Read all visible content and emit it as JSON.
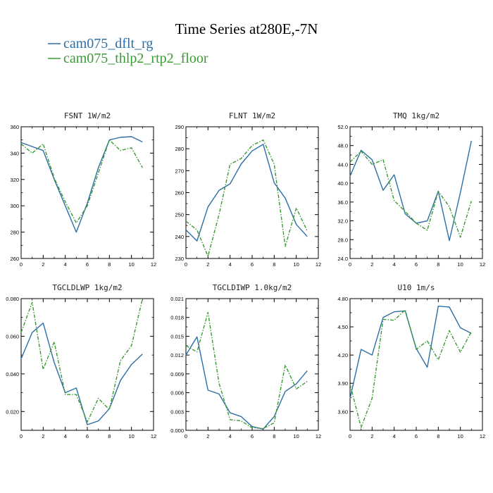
{
  "title": "Time Series at280E,-7N",
  "colors": {
    "dflt": "#2c6fa6",
    "floor": "#3a9a32"
  },
  "legend": [
    {
      "label": "cam075_dflt_rg",
      "color": "#2c6fa6",
      "dash": "solid"
    },
    {
      "label": "cam075_thlp2_rtp2_floor",
      "color": "#3a9a32",
      "dash": "dashdot"
    }
  ],
  "chart_data": [
    {
      "type": "line",
      "title": "FSNT   1W/m2",
      "x": [
        0,
        1,
        2,
        3,
        4,
        5,
        6,
        7,
        8,
        9,
        10,
        11
      ],
      "xlim": [
        0,
        12
      ],
      "xticks": [
        "0",
        "2",
        "4",
        "6",
        "8",
        "10",
        "12"
      ],
      "ylim": [
        260,
        360
      ],
      "yticks": [
        "260",
        "280",
        "300",
        "320",
        "340",
        "360"
      ],
      "series": [
        {
          "name": "cam075_dflt_rg",
          "values": [
            348,
            345,
            342,
            320,
            300,
            280,
            302,
            329,
            350,
            352,
            352.5,
            348.5
          ]
        },
        {
          "name": "cam075_thlp2_rtp2_floor",
          "values": [
            347,
            340,
            347,
            321,
            303,
            287,
            300,
            325,
            350,
            342,
            344,
            329
          ]
        }
      ]
    },
    {
      "type": "line",
      "title": "FLNT   1W/m2",
      "x": [
        0,
        1,
        2,
        3,
        4,
        5,
        6,
        7,
        8,
        9,
        10,
        11
      ],
      "xlim": [
        0,
        12
      ],
      "xticks": [
        "0",
        "2",
        "4",
        "6",
        "8",
        "10",
        "12"
      ],
      "ylim": [
        230,
        290
      ],
      "yticks": [
        "230",
        "240",
        "250",
        "260",
        "270",
        "280",
        "290"
      ],
      "series": [
        {
          "name": "cam075_dflt_rg",
          "values": [
            243,
            238,
            253.5,
            261,
            264,
            273,
            279,
            282,
            264.5,
            257.5,
            245.5,
            240
          ]
        },
        {
          "name": "cam075_thlp2_rtp2_floor",
          "values": [
            247,
            243,
            231,
            250,
            273,
            275.5,
            281.5,
            284,
            273,
            235.5,
            253,
            242.5
          ]
        }
      ]
    },
    {
      "type": "line",
      "title": "TMQ   1kg/m2",
      "x": [
        0,
        1,
        2,
        3,
        4,
        5,
        6,
        7,
        8,
        9,
        10,
        11
      ],
      "xlim": [
        0,
        12
      ],
      "xticks": [
        "0",
        "2",
        "4",
        "6",
        "8",
        "10",
        "12"
      ],
      "ylim": [
        24,
        52
      ],
      "yticks": [
        "24.0",
        "28.0",
        "32.0",
        "36.0",
        "40.0",
        "44.0",
        "48.0",
        "52.0"
      ],
      "series": [
        {
          "name": "cam075_dflt_rg",
          "values": [
            41.5,
            47,
            45,
            38.5,
            41.8,
            33.5,
            31.5,
            32,
            38.3,
            27.8,
            38,
            49
          ]
        },
        {
          "name": "cam075_thlp2_rtp2_floor",
          "values": [
            44.5,
            46.8,
            44,
            45,
            36.3,
            34,
            31.5,
            30,
            38.3,
            35,
            28.5,
            36.2
          ]
        }
      ]
    },
    {
      "type": "line",
      "title": "TGCLDLWP   1kg/m2",
      "x": [
        0,
        1,
        2,
        3,
        4,
        5,
        6,
        7,
        8,
        9,
        10,
        11
      ],
      "xlim": [
        0,
        12
      ],
      "xticks": [
        "0",
        "2",
        "4",
        "6",
        "8",
        "10",
        "12"
      ],
      "ylim": [
        0.01,
        0.08
      ],
      "yticks": [
        "0.020",
        "0.040",
        "0.060",
        "0.080"
      ],
      "yticks_at": [
        0.02,
        0.04,
        0.06,
        0.08
      ],
      "series": [
        {
          "name": "cam075_dflt_rg",
          "values": [
            0.048,
            0.062,
            0.067,
            0.046,
            0.03,
            0.0325,
            0.013,
            0.015,
            0.0215,
            0.0365,
            0.045,
            0.0505
          ]
        },
        {
          "name": "cam075_thlp2_rtp2_floor",
          "values": [
            0.062,
            0.078,
            0.0425,
            0.057,
            0.029,
            0.029,
            0.0145,
            0.027,
            0.021,
            0.047,
            0.055,
            0.08
          ]
        }
      ]
    },
    {
      "type": "line",
      "title": "TGCLDIWP   1.0kg/m2",
      "x": [
        0,
        1,
        2,
        3,
        4,
        5,
        6,
        7,
        8,
        9,
        10,
        11
      ],
      "xlim": [
        0,
        12
      ],
      "xticks": [
        "0",
        "2",
        "4",
        "6",
        "8",
        "10",
        "12"
      ],
      "ylim": [
        0,
        0.021
      ],
      "yticks": [
        "0.000",
        "0.003",
        "0.006",
        "0.009",
        "0.012",
        "0.015",
        "0.018",
        "0.021"
      ],
      "series": [
        {
          "name": "cam075_dflt_rg",
          "values": [
            0.012,
            0.0149,
            0.0064,
            0.0058,
            0.0028,
            0.0022,
            0.0006,
            0.0002,
            0.0022,
            0.0062,
            0.0074,
            0.0095
          ]
        },
        {
          "name": "cam075_thlp2_rtp2_floor",
          "values": [
            0.0135,
            0.0125,
            0.0188,
            0.0075,
            0.0017,
            0.0015,
            0.0004,
            0.0003,
            0.0012,
            0.0104,
            0.0066,
            0.0078
          ]
        }
      ]
    },
    {
      "type": "line",
      "title": "U10   1m/s",
      "x": [
        0,
        1,
        2,
        3,
        4,
        5,
        6,
        7,
        8,
        9,
        10,
        11
      ],
      "xlim": [
        0,
        12
      ],
      "xticks": [
        "0",
        "2",
        "4",
        "6",
        "8",
        "10",
        "12"
      ],
      "ylim": [
        3.4,
        4.8
      ],
      "yticks": [
        "3.60",
        "3.90",
        "4.20",
        "4.50",
        "4.80"
      ],
      "yticks_at": [
        3.6,
        3.9,
        4.2,
        4.5,
        4.8
      ],
      "series": [
        {
          "name": "cam075_dflt_rg",
          "values": [
            3.74,
            4.26,
            4.2,
            4.6,
            4.66,
            4.67,
            4.27,
            4.07,
            4.72,
            4.71,
            4.49,
            4.43
          ]
        },
        {
          "name": "cam075_thlp2_rtp2_floor",
          "values": [
            3.89,
            3.43,
            3.74,
            4.58,
            4.57,
            4.68,
            4.26,
            4.35,
            4.15,
            4.46,
            4.23,
            4.45
          ]
        }
      ]
    }
  ]
}
